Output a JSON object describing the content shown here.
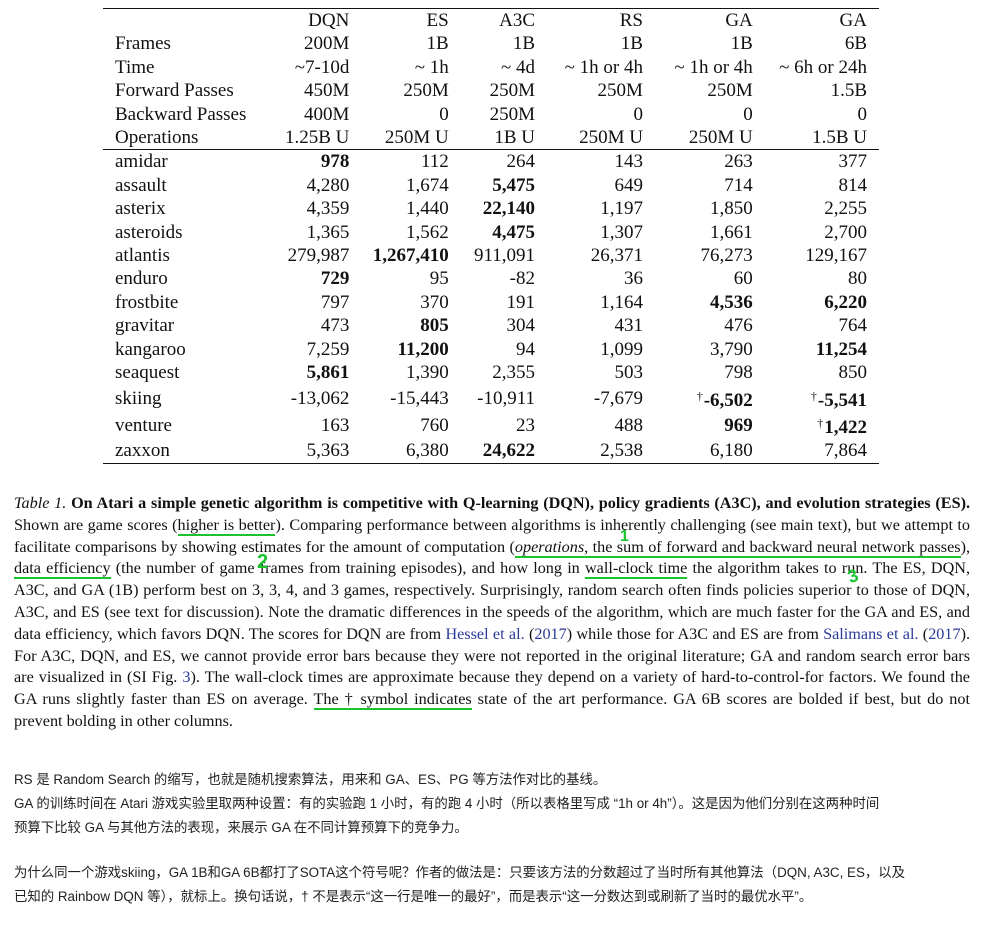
{
  "table": {
    "columns": [
      "DQN",
      "ES",
      "A3C",
      "RS",
      "GA",
      "GA"
    ],
    "meta_rows": [
      {
        "label": "Frames",
        "values": [
          "200M",
          "1B",
          "1B",
          "1B",
          "1B",
          "6B"
        ]
      },
      {
        "label": "Time",
        "values": [
          "~7-10d",
          "~ 1h",
          "~ 4d",
          "~ 1h or 4h",
          "~ 1h or 4h",
          "~ 6h or 24h"
        ]
      },
      {
        "label": "Forward Passes",
        "values": [
          "450M",
          "250M",
          "250M",
          "250M",
          "250M",
          "1.5B"
        ]
      },
      {
        "label": "Backward Passes",
        "values": [
          "400M",
          "0",
          "250M",
          "0",
          "0",
          "0"
        ]
      },
      {
        "label": "Operations",
        "values": [
          "1.25B U",
          "250M U",
          "1B U",
          "250M U",
          "250M U",
          "1.5B U"
        ]
      }
    ],
    "games": [
      {
        "name": "amidar",
        "scores": [
          "978",
          "112",
          "264",
          "143",
          "263",
          "377"
        ],
        "bold": [
          0
        ],
        "dagger": []
      },
      {
        "name": "assault",
        "scores": [
          "4,280",
          "1,674",
          "5,475",
          "649",
          "714",
          "814"
        ],
        "bold": [
          2
        ],
        "dagger": []
      },
      {
        "name": "asterix",
        "scores": [
          "4,359",
          "1,440",
          "22,140",
          "1,197",
          "1,850",
          "2,255"
        ],
        "bold": [
          2
        ],
        "dagger": []
      },
      {
        "name": "asteroids",
        "scores": [
          "1,365",
          "1,562",
          "4,475",
          "1,307",
          "1,661",
          "2,700"
        ],
        "bold": [
          2
        ],
        "dagger": []
      },
      {
        "name": "atlantis",
        "scores": [
          "279,987",
          "1,267,410",
          "911,091",
          "26,371",
          "76,273",
          "129,167"
        ],
        "bold": [
          1
        ],
        "dagger": []
      },
      {
        "name": "enduro",
        "scores": [
          "729",
          "95",
          "-82",
          "36",
          "60",
          "80"
        ],
        "bold": [
          0
        ],
        "dagger": []
      },
      {
        "name": "frostbite",
        "scores": [
          "797",
          "370",
          "191",
          "1,164",
          "4,536",
          "6,220"
        ],
        "bold": [
          4,
          5
        ],
        "dagger": []
      },
      {
        "name": "gravitar",
        "scores": [
          "473",
          "805",
          "304",
          "431",
          "476",
          "764"
        ],
        "bold": [
          1
        ],
        "dagger": []
      },
      {
        "name": "kangaroo",
        "scores": [
          "7,259",
          "11,200",
          "94",
          "1,099",
          "3,790",
          "11,254"
        ],
        "bold": [
          1,
          5
        ],
        "dagger": []
      },
      {
        "name": "seaquest",
        "scores": [
          "5,861",
          "1,390",
          "2,355",
          "503",
          "798",
          "850"
        ],
        "bold": [
          0
        ],
        "dagger": []
      },
      {
        "name": "skiing",
        "scores": [
          "-13,062",
          "-15,443",
          "-10,911",
          "-7,679",
          "-6,502",
          "-5,541"
        ],
        "bold": [
          4,
          5
        ],
        "dagger": [
          4,
          5
        ]
      },
      {
        "name": "venture",
        "scores": [
          "163",
          "760",
          "23",
          "488",
          "969",
          "1,422"
        ],
        "bold": [
          4,
          5
        ],
        "dagger": [
          5
        ]
      },
      {
        "name": "zaxxon",
        "scores": [
          "5,363",
          "6,380",
          "24,622",
          "2,538",
          "6,180",
          "7,864"
        ],
        "bold": [
          2
        ],
        "dagger": []
      }
    ],
    "dagger_symbol": "†"
  },
  "caption": {
    "label": "Table 1.",
    "bold_lead": "On Atari a simple genetic algorithm is competitive with Q-learning (DQN), policy gradients (A3C), and evolution strategies (ES).",
    "t1": " Shown are game scores (",
    "h1": "higher is better",
    "t2": "). Comparing performance between algorithms is inherently challenging (see main text), but we attempt to facilitate comparisons by showing estimates for the amount of computation (",
    "h2_italic": "operations",
    "h2_rest": ", the sum of forward and backward neural network passes",
    "t3": "), ",
    "h3": "data efficiency",
    "t4": " (the number of game frames from training episodes), and how long in ",
    "h4": "wall-clock time",
    "t5": " the algorithm takes to run. The ES, DQN, A3C, and GA (1B) perform best on 3, 3, 4, and 3 games, respectively. Surprisingly, random search often finds policies superior to those of DQN, A3C, and ES (see text for discussion). Note the dramatic differences in the speeds of the algorithm, which are much faster for the GA and ES, and data efficiency, which favors DQN. The scores for DQN are from ",
    "cite1": "Hessel et al.",
    "t6": " (",
    "cite1_year": "2017",
    "t7": ") while those for A3C and ES are from ",
    "cite2": "Salimans et al.",
    "t8": " (",
    "cite2_year": "2017",
    "t9": "). For A3C, DQN, and ES, we cannot provide error bars because they were not reported in the original literature; GA and random search error bars are visualized in (SI Fig. ",
    "cite3": "3",
    "t10": "). The wall-clock times are approximate because they depend on a variety of hard-to-control-for factors. We found the GA runs slightly faster than ES on average. ",
    "h5": "The † symbol indicates",
    "t11": " state of the art performance. GA 6B scores are bolded if best, but do not prevent bolding in other columns."
  },
  "notes": {
    "line1": "RS 是 Random Search 的缩写，也就是随机搜索算法，用来和 GA、ES、PG 等方法作对比的基线。",
    "line2": "GA 的训练时间在 Atari 游戏实验里取两种设置：有的实验跑 1 小时，有的跑 4 小时（所以表格里写成 “1h or 4h”）。这是因为他们分别在这两种时间",
    "line3": "预算下比较 GA 与其他方法的表现，来展示 GA 在不同计算预算下的竞争力。",
    "line4": "为什么同一个游戏skiing，GA 1B和GA 6B都打了SOTA这个符号呢？作者的做法是：只要该方法的分数超过了当时所有其他算法（DQN, A3C, ES，以及",
    "line5": "已知的 Rainbow DQN 等），就标上。换句话说，† 不是表示“这一行是唯一的最好”，而是表示“这一分数达到或刷新了当时的最优水平”。"
  },
  "annotations": {
    "marks": [
      "1",
      "2",
      "3"
    ],
    "ink_color": "#19c42c"
  }
}
